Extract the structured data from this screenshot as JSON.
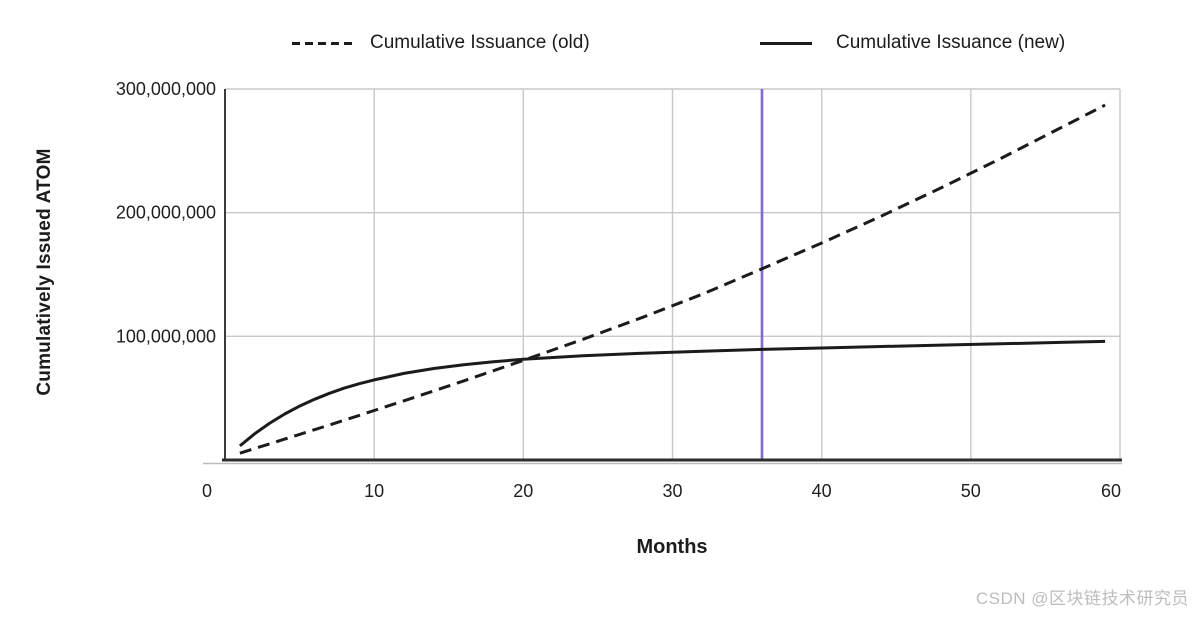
{
  "page": {
    "background": "#ffffff"
  },
  "legend": {
    "position": "top",
    "items": [
      {
        "label": "Cumulative Issuance (old)",
        "line_style": "dashed"
      },
      {
        "label": "Cumulative Issuance (new)",
        "line_style": "solid"
      }
    ]
  },
  "watermark": {
    "text": "CSDN @区块链技术研究员",
    "color": "#bdbdbd"
  },
  "chart_data": {
    "type": "line",
    "title": "",
    "xlabel": "Months",
    "ylabel": "Cumulatively Issued ATOM",
    "x_range": [
      0,
      60
    ],
    "y_range_atom": [
      0,
      300000000
    ],
    "values_unit": "millions of ATOM",
    "grid": true,
    "legend_position": "top",
    "x_ticks": [
      {
        "v": 0,
        "label": "0"
      },
      {
        "v": 10,
        "label": "10"
      },
      {
        "v": 20,
        "label": "20"
      },
      {
        "v": 30,
        "label": "30"
      },
      {
        "v": 40,
        "label": "40"
      },
      {
        "v": 50,
        "label": "50"
      },
      {
        "v": 60,
        "label": "60"
      }
    ],
    "y_ticks": [
      {
        "v": 100,
        "label": "100,000,000"
      },
      {
        "v": 200,
        "label": "200,000,000"
      },
      {
        "v": 300,
        "label": "300,000,000"
      }
    ],
    "months": [
      1,
      2,
      3,
      4,
      5,
      6,
      7,
      8,
      9,
      10,
      12,
      14,
      16,
      18,
      20,
      24,
      28,
      32,
      36,
      40,
      44,
      48,
      52,
      56,
      59
    ],
    "series": [
      {
        "name": "Cumulative Issuance (old)",
        "line": "dashed",
        "values_millions": [
          5.5,
          9.3,
          13.1,
          16.9,
          20.7,
          24.5,
          28.3,
          32.2,
          36.1,
          40.0,
          47.9,
          55.9,
          64.0,
          72.2,
          80.5,
          97.6,
          115.4,
          134.1,
          154.6,
          175.5,
          197.2,
          220.0,
          243.8,
          268.5,
          287.0
        ]
      },
      {
        "name": "Cumulative Issuance (new)",
        "line": "solid",
        "values_millions": [
          11.4,
          21.3,
          29.8,
          37.2,
          43.6,
          49.1,
          53.9,
          58.1,
          61.7,
          64.8,
          70.0,
          74.0,
          77.1,
          79.5,
          81.4,
          84.3,
          86.4,
          88.0,
          89.4,
          90.6,
          91.8,
          92.9,
          94.0,
          95.1,
          95.9
        ]
      }
    ],
    "annotations": [
      {
        "type": "vline",
        "x": 36,
        "color": "#8468d4"
      }
    ],
    "colors": {
      "line": "#1b1b1b",
      "grid": "#c9c9c9",
      "axis": "#3a3a3a",
      "axis_bottom": "#2d2d2d",
      "text": "#1f1f1f"
    }
  }
}
